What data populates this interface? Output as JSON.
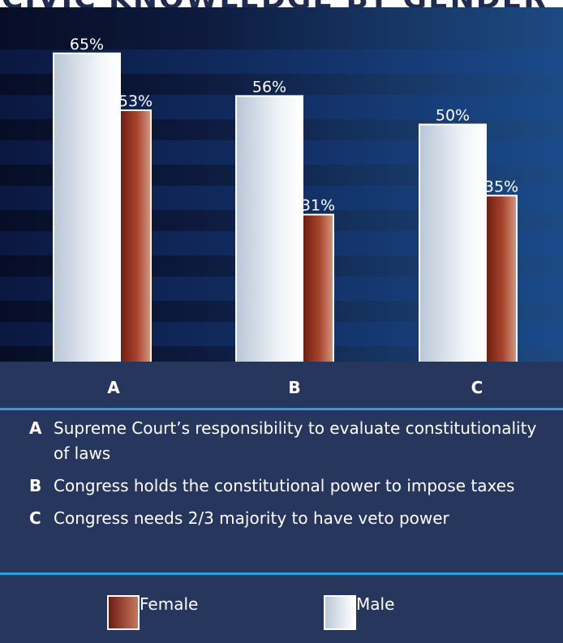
{
  "title": "CIVIC KNOWLEDGE BY GENDER",
  "chart_data": {
    "type": "bar",
    "categories": [
      "A",
      "B",
      "C"
    ],
    "series": [
      {
        "name": "Male",
        "values": [
          65,
          56,
          50
        ],
        "labels": [
          "65%",
          "56%",
          "50%"
        ]
      },
      {
        "name": "Female",
        "values": [
          53,
          31,
          35
        ],
        "labels": [
          "53%",
          "31%",
          "35%"
        ]
      }
    ],
    "ylim": [
      0,
      68
    ],
    "grid": false,
    "legend_position": "bottom",
    "colors": {
      "male": "#eef3f8",
      "female": "#a8452c"
    }
  },
  "descriptions": [
    {
      "key": "A",
      "text": "Supreme Court’s responsibility to evaluate constitutionality of laws"
    },
    {
      "key": "B",
      "text": "Congress holds the constitutional power to impose taxes"
    },
    {
      "key": "C",
      "text": "Congress needs 2/3 majority to have veto power"
    }
  ],
  "legend": [
    {
      "name": "Female"
    },
    {
      "name": "Male"
    }
  ]
}
